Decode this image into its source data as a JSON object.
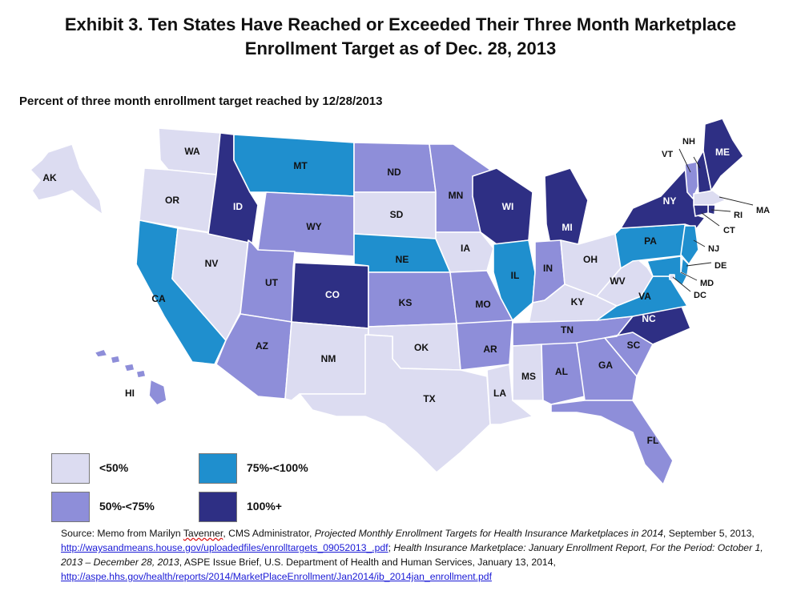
{
  "title_line1": "Exhibit 3. Ten States Have Reached or Exceeded Their Three Month Marketplace",
  "title_line2": "Enrollment Target as of Dec. 28, 2013",
  "subtitle": "Percent of three month enrollment target reached by 12/28/2013",
  "colors": {
    "lt50": "#dcdcf1",
    "c50_75": "#8e8ed9",
    "c75_100": "#1f8fce",
    "c100": "#2e2f84",
    "border": "#ffffff"
  },
  "legend": [
    {
      "category": "lt50",
      "label": "<50%"
    },
    {
      "category": "c75_100",
      "label": "75%-<100%"
    },
    {
      "category": "c50_75",
      "label": "50%-<75%"
    },
    {
      "category": "c100",
      "label": "100%+"
    }
  ],
  "states": {
    "WA": "lt50",
    "OR": "lt50",
    "CA": "c75_100",
    "NV": "lt50",
    "ID": "c100",
    "MT": "c75_100",
    "WY": "c50_75",
    "UT": "c50_75",
    "AZ": "c50_75",
    "CO": "c100",
    "NM": "lt50",
    "ND": "c50_75",
    "SD": "lt50",
    "NE": "c75_100",
    "KS": "c50_75",
    "OK": "lt50",
    "TX": "lt50",
    "MN": "c50_75",
    "IA": "lt50",
    "MO": "c50_75",
    "AR": "c50_75",
    "LA": "lt50",
    "WI": "c100",
    "IL": "c75_100",
    "MI": "c100",
    "IN": "c50_75",
    "OH": "lt50",
    "KY": "lt50",
    "TN": "c50_75",
    "MS": "lt50",
    "AL": "c50_75",
    "GA": "c50_75",
    "FL": "c50_75",
    "SC": "c50_75",
    "NC": "c100",
    "VA": "c75_100",
    "WV": "lt50",
    "PA": "c75_100",
    "NY": "c100",
    "VT": "c50_75",
    "NH": "c100",
    "ME": "c100",
    "MA": "lt50",
    "RI": "c100",
    "CT": "c100",
    "NJ": "c75_100",
    "DE": "c75_100",
    "MD": "c75_100",
    "DC": "lt50",
    "AK": "lt50",
    "HI": "c50_75"
  },
  "source": {
    "p1": "Source: Memo from Marilyn ",
    "p2": "Tavenner",
    "p3": ", CMS Administrator, ",
    "p4": "Projected Monthly Enrollment Targets for Health Insurance Marketplaces in 2014",
    "p5": ", September 5, 2013, ",
    "p6": "http://waysandmeans.house.gov/uploadedfiles/enrolltargets_09052013_.pdf",
    "p7": "; ",
    "p8": "Health Insurance Marketplace: January Enrollment Report, For the Period: October 1, 2013 – December 28, 2013",
    "p9": ", ASPE Issue Brief, U.S. Department of Health and Human Services, January 13, 2014, ",
    "p10": "http://aspe.hhs.gov/health/reports/2014/MarketPlaceEnrollment/Jan2014/ib_2014jan_enrollment.pdf"
  }
}
